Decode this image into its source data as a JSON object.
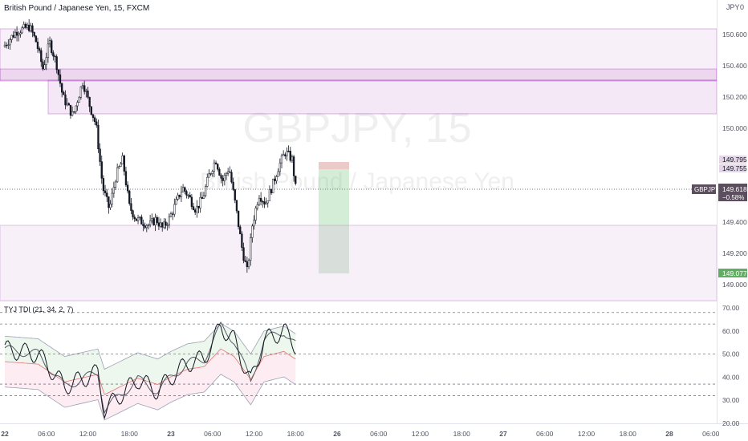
{
  "header": {
    "symbol_title": "British Pound / Japanese Yen, 15, FXCM",
    "currency_badge": "JPY",
    "currency_badge_extra": "0"
  },
  "watermark": {
    "ticker": "GBPJPY, 15",
    "description": "British Pound / Japanese Yen"
  },
  "colors": {
    "up": "#26a69a",
    "down": "#131722",
    "zone_fill": "#9c27b0",
    "profit_fill": "#a5d6a7",
    "loss_fill": "#e8b9b9",
    "badge_dark": "#5d4e5f",
    "badge_green": "#5fae63"
  },
  "price_axis": {
    "ticks": [
      "150.600",
      "150.400",
      "150.200",
      "150.000",
      "149.400",
      "149.200",
      "149.000"
    ],
    "badges": {
      "upper_1": "149.795",
      "upper_2": "149.755",
      "current_symbol": "GBPJPY",
      "current_price": "149.618",
      "current_change": "−0.58%",
      "target": "149.077"
    }
  },
  "indicator": {
    "label": "TYJ TDI (21, 34, 2, 7)",
    "axis_ticks": [
      "70.00",
      "60.00",
      "50.00",
      "40.00",
      "30.00",
      "20.00"
    ],
    "levels": [
      68,
      63,
      50,
      37,
      32
    ]
  },
  "time_axis": {
    "ticks": [
      "22",
      "06:00",
      "12:00",
      "18:00",
      "23",
      "06:00",
      "12:00",
      "18:00",
      "26",
      "06:00",
      "12:00",
      "18:00",
      "27",
      "06:00",
      "12:00",
      "18:00",
      "28",
      "06:00"
    ]
  },
  "chart_data": {
    "type": "candlestick",
    "symbol": "GBPJPY",
    "timeframe": "15",
    "source": "FXCM",
    "y_range": [
      148.95,
      150.8
    ],
    "price_path": [
      [
        22.0,
        150.52
      ],
      [
        22.08,
        150.62
      ],
      [
        22.16,
        150.65
      ],
      [
        22.2,
        150.55
      ],
      [
        22.24,
        150.38
      ],
      [
        22.28,
        150.55
      ],
      [
        22.32,
        150.42
      ],
      [
        22.36,
        150.2
      ],
      [
        22.42,
        150.08
      ],
      [
        22.48,
        150.3
      ],
      [
        22.52,
        150.15
      ],
      [
        22.56,
        150.02
      ],
      [
        22.6,
        149.62
      ],
      [
        22.64,
        149.48
      ],
      [
        22.68,
        149.7
      ],
      [
        22.72,
        149.8
      ],
      [
        22.76,
        149.5
      ],
      [
        22.8,
        149.42
      ],
      [
        22.88,
        149.38
      ],
      [
        22.92,
        149.42
      ],
      [
        22.96,
        149.36
      ],
      [
        23.0,
        149.42
      ],
      [
        23.04,
        149.52
      ],
      [
        23.08,
        149.62
      ],
      [
        23.12,
        149.56
      ],
      [
        23.16,
        149.48
      ],
      [
        23.2,
        149.55
      ],
      [
        23.24,
        149.7
      ],
      [
        23.28,
        149.8
      ],
      [
        23.32,
        149.66
      ],
      [
        23.36,
        149.75
      ],
      [
        23.4,
        149.5
      ],
      [
        23.44,
        149.22
      ],
      [
        23.47,
        149.08
      ],
      [
        23.5,
        149.38
      ],
      [
        23.54,
        149.58
      ],
      [
        23.58,
        149.52
      ],
      [
        23.62,
        149.63
      ],
      [
        23.66,
        149.76
      ],
      [
        23.7,
        149.85
      ],
      [
        23.74,
        149.8
      ],
      [
        23.76,
        149.62
      ]
    ],
    "zones": [
      {
        "from": 150.6,
        "to": 150.66
      },
      {
        "from": 150.33,
        "to": 150.4
      },
      {
        "from": 150.11,
        "to": 150.33
      },
      {
        "from": 148.95,
        "to": 149.39
      }
    ],
    "position": {
      "entry": 149.755,
      "stop": 149.795,
      "target": 149.077
    },
    "indicator_y_range": [
      20,
      70
    ]
  }
}
